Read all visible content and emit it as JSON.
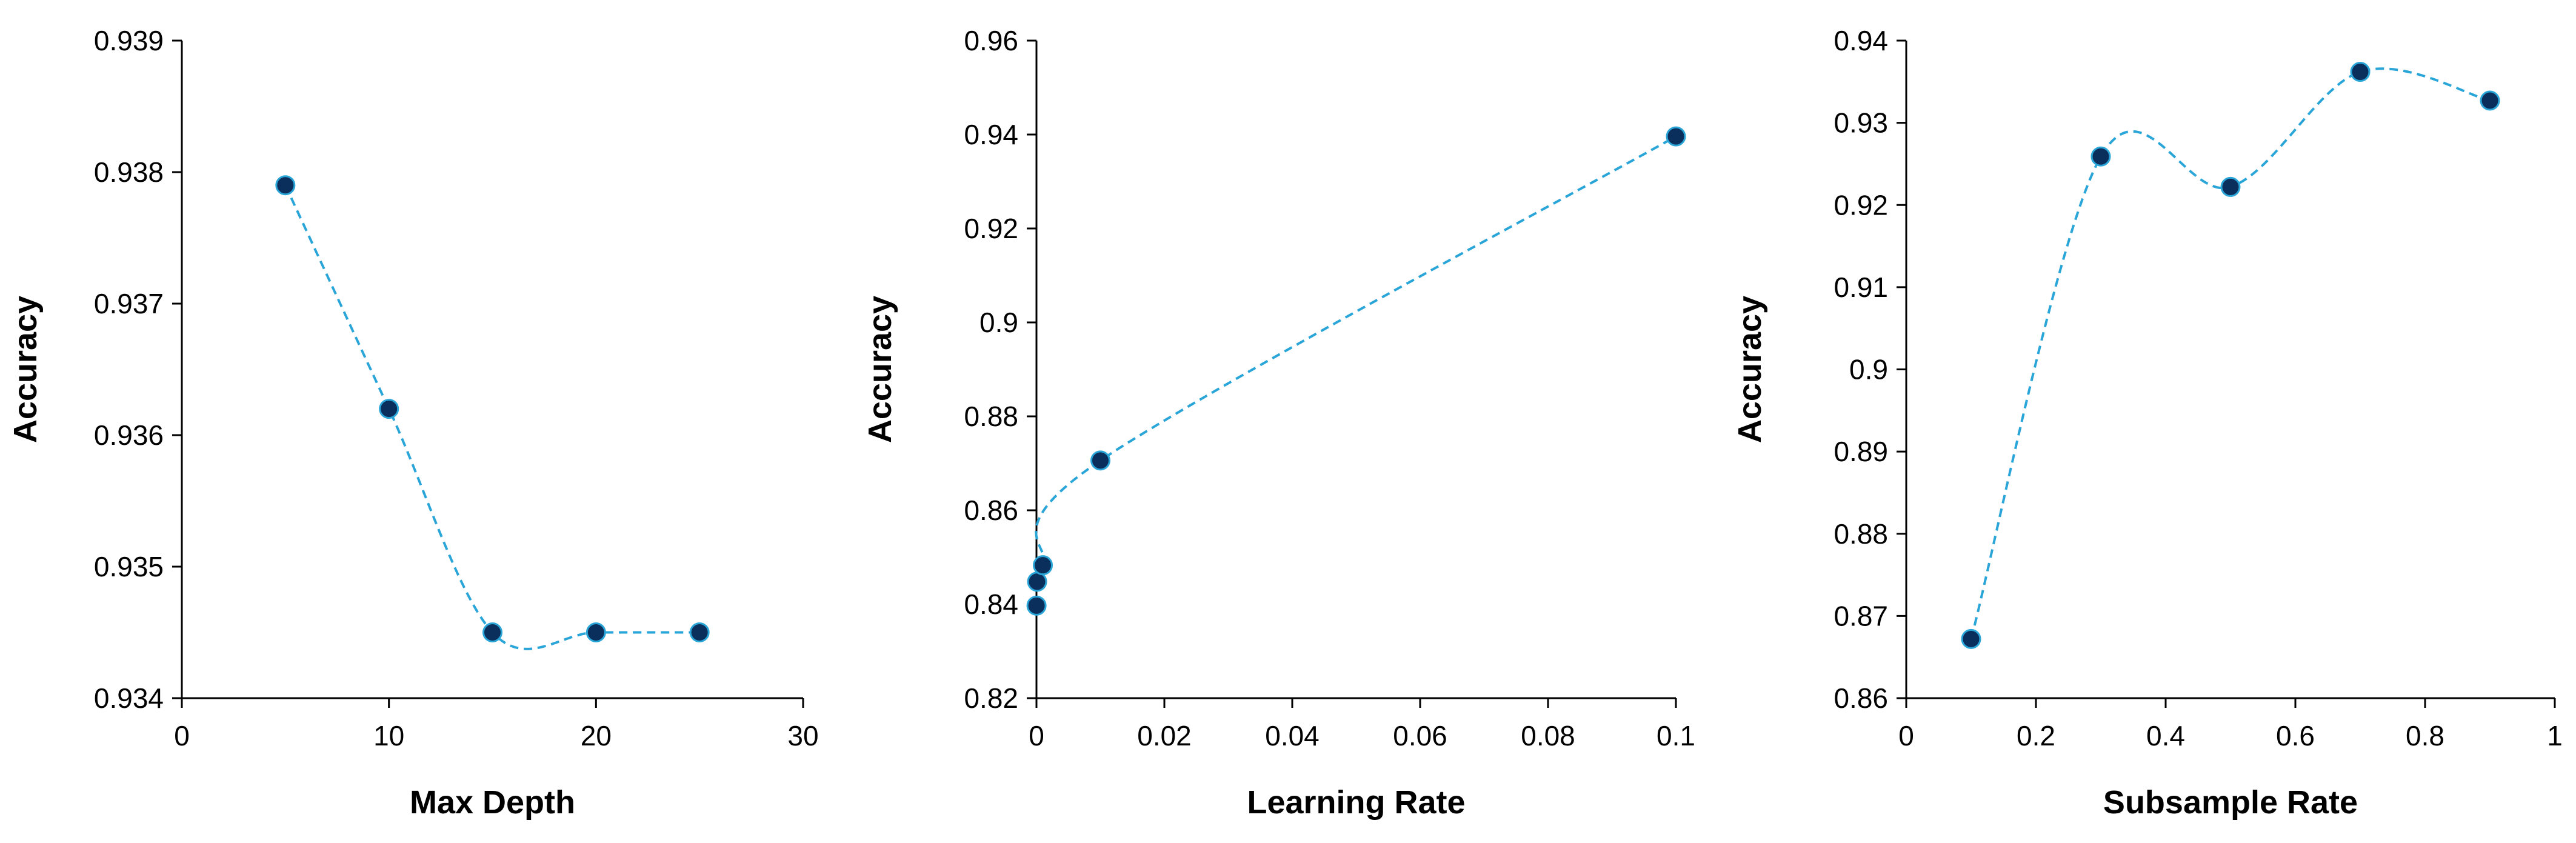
{
  "colors": {
    "marker_fill": "#0b2f5c",
    "marker_edge": "#2aa5d8",
    "line": "#2aa5d8",
    "axis": "#000000"
  },
  "chart_data": [
    {
      "type": "scatter",
      "line_style": "dashed smoothed",
      "grid": false,
      "xlabel": "Max Depth",
      "ylabel": "Accuracy",
      "xlim": [
        0,
        30
      ],
      "ylim": [
        0.934,
        0.939
      ],
      "x_ticks": [
        "0",
        "10",
        "20",
        "30"
      ],
      "x_tick_values": [
        0,
        10,
        20,
        30
      ],
      "y_ticks": [
        "0.934",
        "0.935",
        "0.936",
        "0.937",
        "0.938",
        "0.939"
      ],
      "y_tick_values": [
        0.934,
        0.935,
        0.936,
        0.937,
        0.938,
        0.939
      ],
      "x": [
        5,
        10,
        15,
        20,
        25
      ],
      "y": [
        0.9379,
        0.9362,
        0.9345,
        0.9345,
        0.9345
      ]
    },
    {
      "type": "scatter",
      "line_style": "dashed smoothed",
      "grid": false,
      "xlabel": "Learning Rate",
      "ylabel": "Accuracy",
      "xlim": [
        0,
        0.1
      ],
      "ylim": [
        0.82,
        0.96
      ],
      "x_ticks": [
        "0",
        "0.02",
        "0.04",
        "0.06",
        "0.08",
        "0.1"
      ],
      "x_tick_values": [
        0,
        0.02,
        0.04,
        0.06,
        0.08,
        0.1
      ],
      "y_ticks": [
        "0.82",
        "0.84",
        "0.86",
        "0.88",
        "0.9",
        "0.92",
        "0.94",
        "0.96"
      ],
      "y_tick_values": [
        0.82,
        0.84,
        0.86,
        0.88,
        0.9,
        0.92,
        0.94,
        0.96
      ],
      "x": [
        1e-05,
        0.0001,
        0.001,
        0.01,
        0.1
      ],
      "y": [
        0.8397,
        0.8448,
        0.8483,
        0.8706,
        0.9396
      ]
    },
    {
      "type": "scatter",
      "line_style": "dashed smoothed",
      "grid": false,
      "xlabel": "Subsample Rate",
      "ylabel": "Accuracy",
      "xlim": [
        0,
        1
      ],
      "ylim": [
        0.86,
        0.94
      ],
      "x_ticks": [
        "0",
        "0.2",
        "0.4",
        "0.6",
        "0.8",
        "1"
      ],
      "x_tick_values": [
        0,
        0.2,
        0.4,
        0.6,
        0.8,
        1
      ],
      "y_ticks": [
        "0.86",
        "0.87",
        "0.88",
        "0.89",
        "0.9",
        "0.91",
        "0.92",
        "0.93",
        "0.94"
      ],
      "y_tick_values": [
        0.86,
        0.87,
        0.88,
        0.89,
        0.9,
        0.91,
        0.92,
        0.93,
        0.94
      ],
      "x": [
        0.1,
        0.3,
        0.5,
        0.7,
        0.9
      ],
      "y": [
        0.8672,
        0.9259,
        0.9222,
        0.9362,
        0.9327
      ]
    }
  ]
}
